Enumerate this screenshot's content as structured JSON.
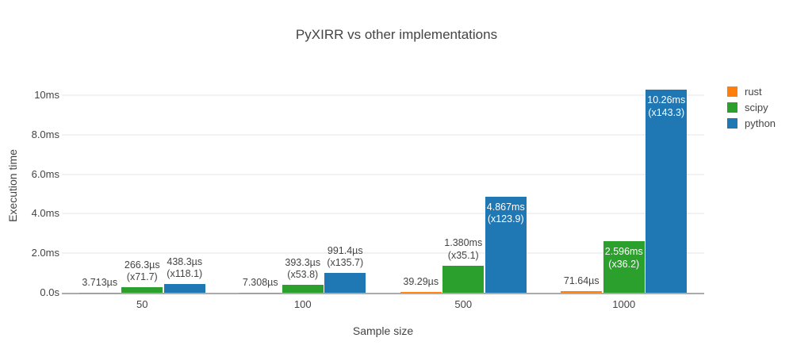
{
  "chart_data": {
    "type": "bar",
    "title": "PyXIRR vs other implementations",
    "xlabel": "Sample size",
    "ylabel": "Execution time",
    "categories": [
      "50",
      "100",
      "500",
      "1000"
    ],
    "yticks": [
      {
        "ms": 0,
        "label": "0.0s"
      },
      {
        "ms": 2,
        "label": "2.0ms"
      },
      {
        "ms": 4,
        "label": "4.0ms"
      },
      {
        "ms": 6,
        "label": "6.0ms"
      },
      {
        "ms": 8,
        "label": "8.0ms"
      },
      {
        "ms": 10,
        "label": "10ms"
      }
    ],
    "ylim_ms": [
      0,
      10.5
    ],
    "grid": true,
    "legend_position": "top-right",
    "series": [
      {
        "name": "rust",
        "color": "#ff7f0e",
        "points": [
          {
            "ms": 0.003713,
            "label": "3.713µs",
            "multiplier": null,
            "label_inside": false
          },
          {
            "ms": 0.007308,
            "label": "7.308µs",
            "multiplier": null,
            "label_inside": false
          },
          {
            "ms": 0.03929,
            "label": "39.29µs",
            "multiplier": null,
            "label_inside": false
          },
          {
            "ms": 0.07164,
            "label": "71.64µs",
            "multiplier": null,
            "label_inside": false
          }
        ]
      },
      {
        "name": "scipy",
        "color": "#2ca02c",
        "points": [
          {
            "ms": 0.2663,
            "label": "266.3µs",
            "multiplier": "(x71.7)",
            "label_inside": false
          },
          {
            "ms": 0.3933,
            "label": "393.3µs",
            "multiplier": "(x53.8)",
            "label_inside": false
          },
          {
            "ms": 1.38,
            "label": "1.380ms",
            "multiplier": "(x35.1)",
            "label_inside": false
          },
          {
            "ms": 2.596,
            "label": "2.596ms",
            "multiplier": "(x36.2)",
            "label_inside": true
          }
        ]
      },
      {
        "name": "python",
        "color": "#1f77b4",
        "points": [
          {
            "ms": 0.4383,
            "label": "438.3µs",
            "multiplier": "(x118.1)",
            "label_inside": false
          },
          {
            "ms": 0.9914,
            "label": "991.4µs",
            "multiplier": "(x135.7)",
            "label_inside": false
          },
          {
            "ms": 4.867,
            "label": "4.867ms",
            "multiplier": "(x123.9)",
            "label_inside": true
          },
          {
            "ms": 10.26,
            "label": "10.26ms",
            "multiplier": "(x143.3)",
            "label_inside": true
          }
        ]
      }
    ]
  }
}
